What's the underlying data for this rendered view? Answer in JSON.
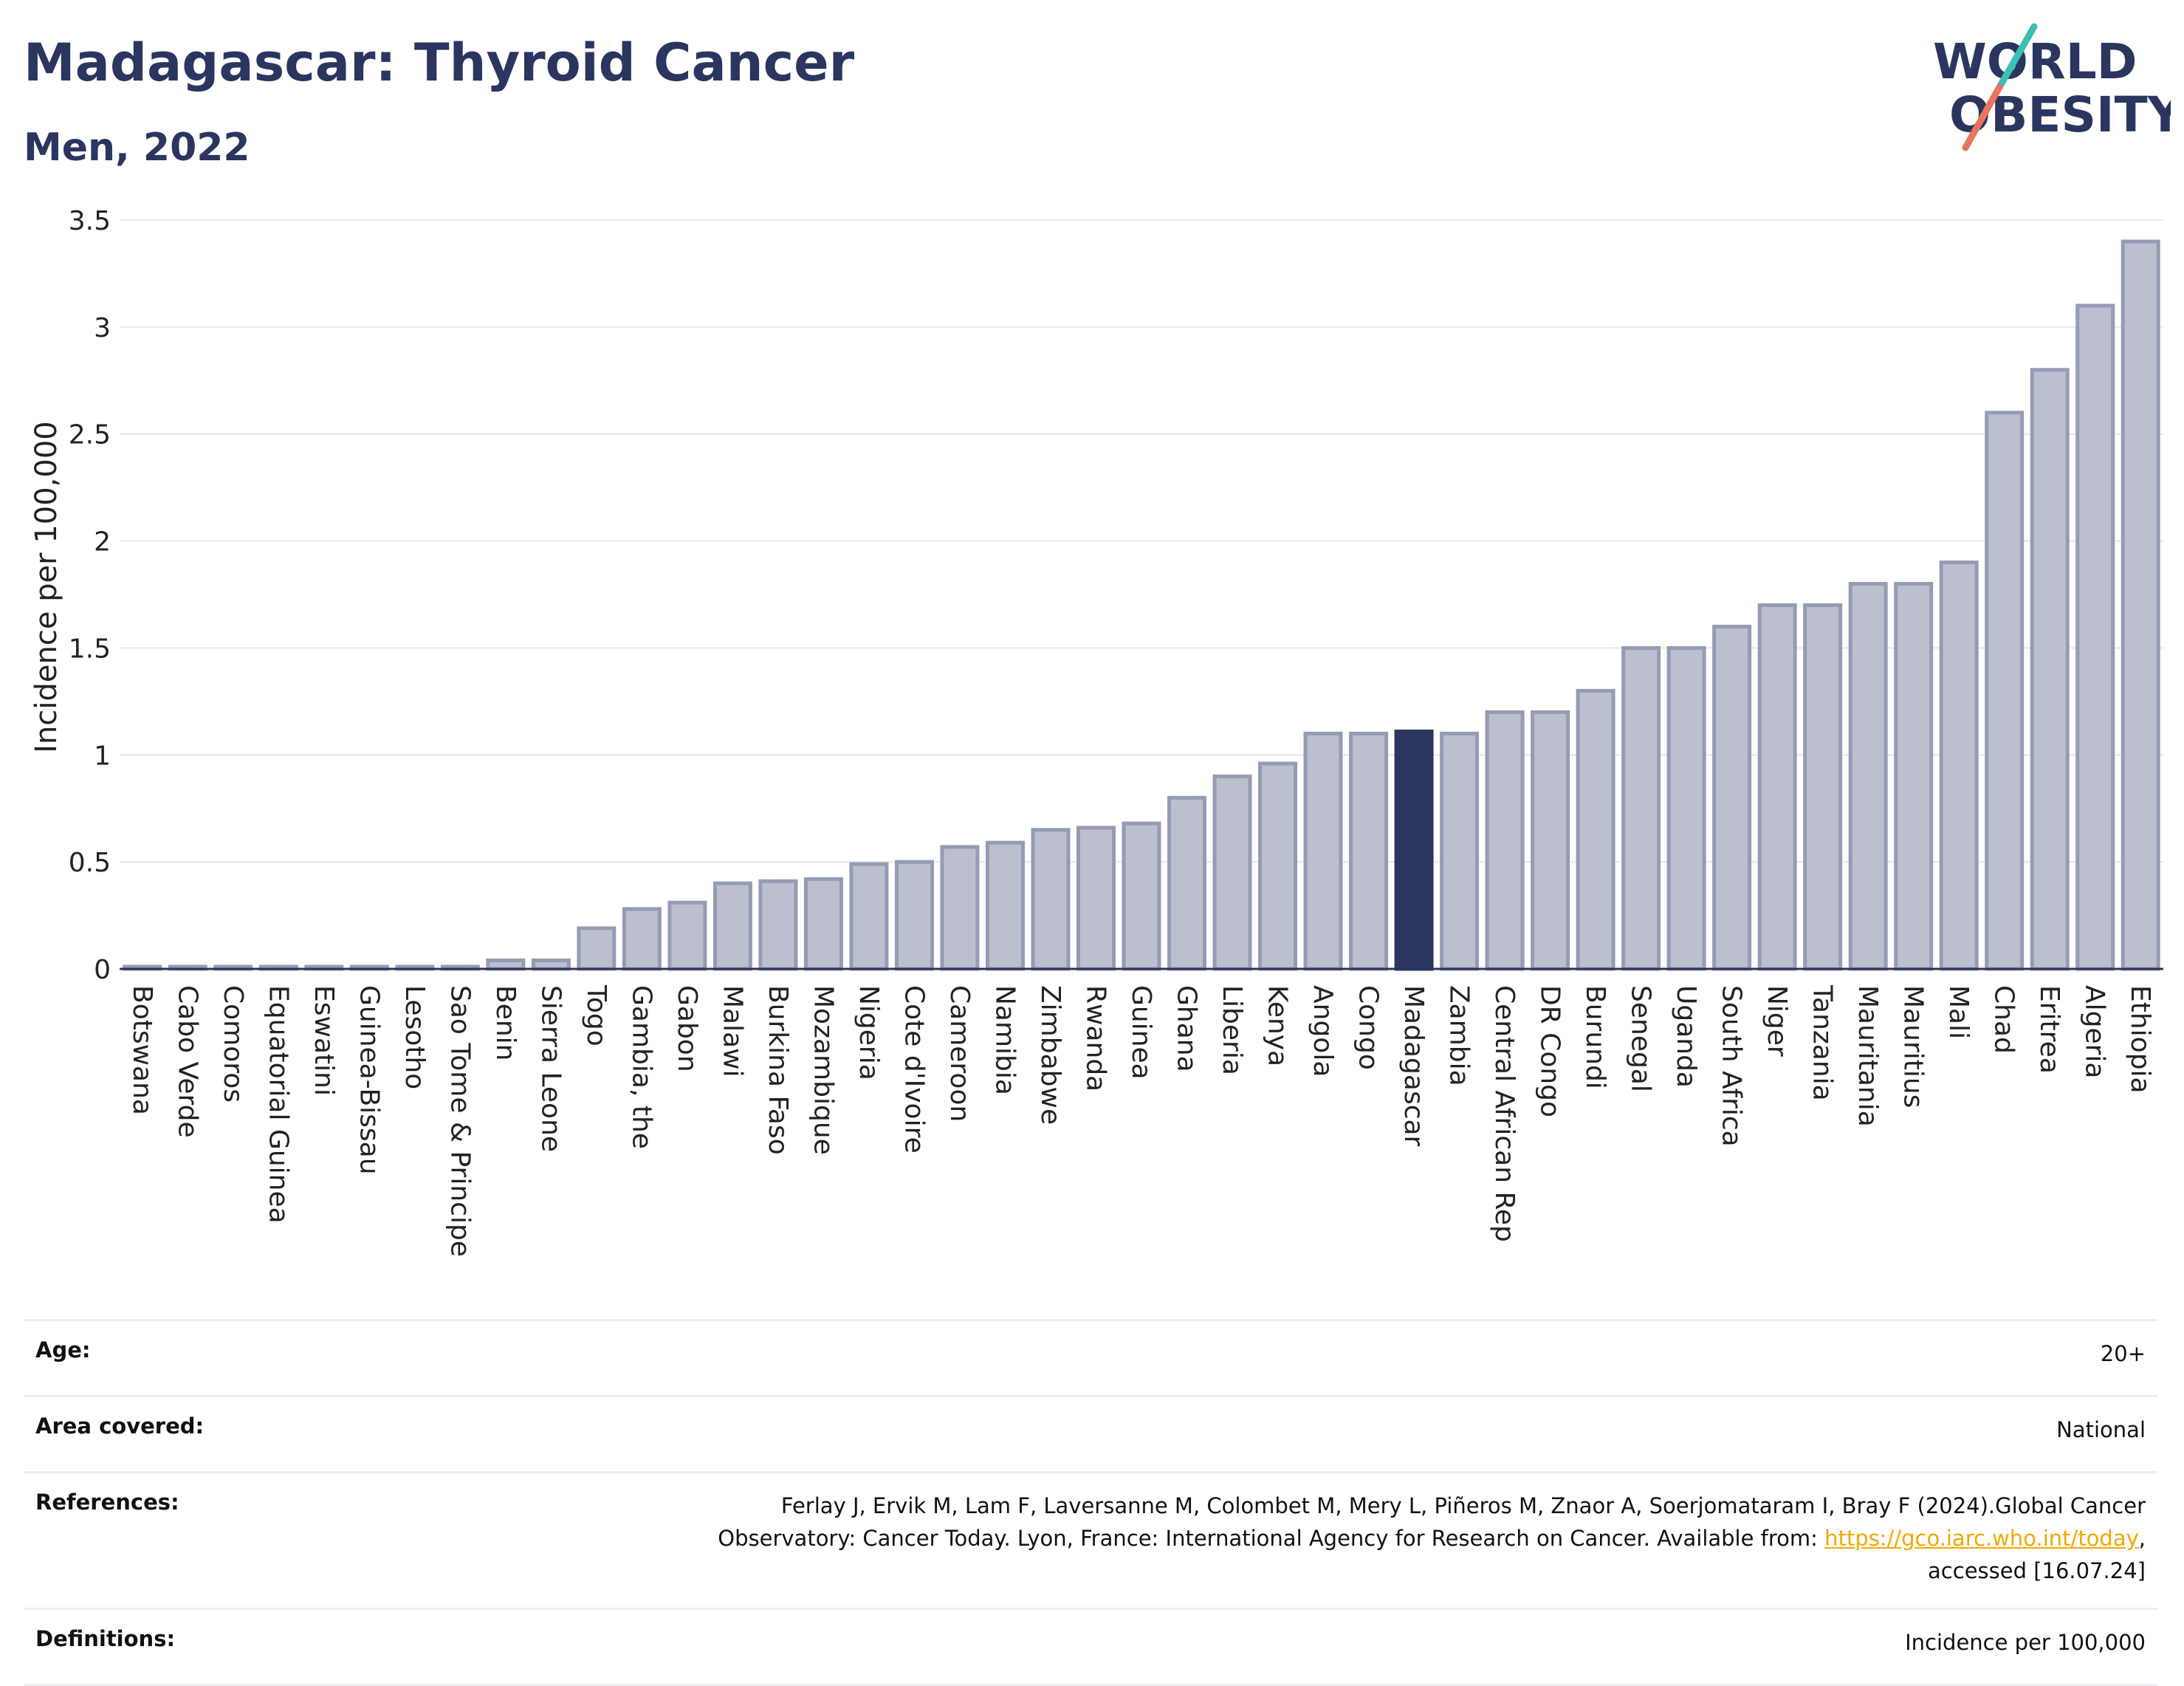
{
  "header": {
    "title": "Madagascar: Thyroid Cancer",
    "subtitle": "Men, 2022",
    "logo_line1": "WORLD",
    "logo_line2": "OBESITY"
  },
  "colors": {
    "title": "#2a3560",
    "bar": "#bcc0ce",
    "bar_border": "#949bb3",
    "highlight": "#2a3560",
    "grid": "#e6e6ee",
    "link": "#f2a900",
    "logo_teal": "#3cbfb4",
    "logo_coral": "#e8735f"
  },
  "chart_data": {
    "type": "bar",
    "title": "Madagascar: Thyroid Cancer",
    "subtitle": "Men, 2022",
    "xlabel": "",
    "ylabel": "Incidence per 100,000",
    "ylim": [
      0,
      3.5
    ],
    "yticks": [
      0,
      0.5,
      1,
      1.5,
      2,
      2.5,
      3,
      3.5
    ],
    "ytick_labels": [
      "0",
      "0.5",
      "1",
      "1.5",
      "2",
      "2.5",
      "3",
      "3.5"
    ],
    "grid": true,
    "legend": "none",
    "highlight": "Madagascar",
    "categories": [
      "Botswana",
      "Cabo Verde",
      "Comoros",
      "Equatorial Guinea",
      "Eswatini",
      "Guinea-Bissau",
      "Lesotho",
      "Sao Tome & Principe",
      "Benin",
      "Sierra Leone",
      "Togo",
      "Gambia, the",
      "Gabon",
      "Malawi",
      "Burkina Faso",
      "Mozambique",
      "Nigeria",
      "Cote d'Ivoire",
      "Cameroon",
      "Namibia",
      "Zimbabwe",
      "Rwanda",
      "Guinea",
      "Ghana",
      "Liberia",
      "Kenya",
      "Angola",
      "Congo",
      "Madagascar",
      "Zambia",
      "Central African Rep",
      "DR Congo",
      "Burundi",
      "Senegal",
      "Uganda",
      "South Africa",
      "Niger",
      "Tanzania",
      "Mauritania",
      "Mauritius",
      "Mali",
      "Chad",
      "Eritrea",
      "Algeria",
      "Ethiopia"
    ],
    "values": [
      0.01,
      0.01,
      0.01,
      0.01,
      0.01,
      0.01,
      0.01,
      0.01,
      0.04,
      0.04,
      0.19,
      0.28,
      0.31,
      0.4,
      0.41,
      0.42,
      0.49,
      0.5,
      0.57,
      0.59,
      0.65,
      0.66,
      0.68,
      0.8,
      0.9,
      0.96,
      1.1,
      1.1,
      1.11,
      1.1,
      1.2,
      1.2,
      1.3,
      1.5,
      1.5,
      1.6,
      1.7,
      1.7,
      1.8,
      1.8,
      1.9,
      2.6,
      2.8,
      3.1,
      3.4
    ]
  },
  "meta": {
    "rows": [
      {
        "label": "Age:",
        "value": "20+"
      },
      {
        "label": "Area covered:",
        "value": "National"
      },
      {
        "label": "References:",
        "line1": "Ferlay J, Ervik M, Lam F, Laversanne M, Colombet M, Mery L, Piñeros M, Znaor A, Soerjomataram I, Bray F (2024).Global Cancer",
        "line2_before": "Observatory: Cancer Today. Lyon, France: International Agency for Research on Cancer. Available from: ",
        "link": "https://gco.iarc.who.int/today",
        "line2_after": ",",
        "line3": "accessed [16.07.24]"
      },
      {
        "label": "Definitions:",
        "value": "Incidence per 100,000"
      }
    ]
  }
}
